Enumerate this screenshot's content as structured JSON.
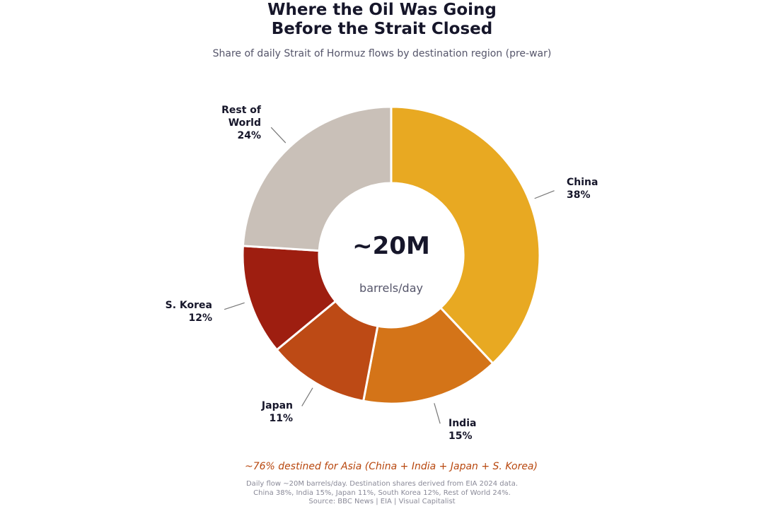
{
  "title_lines": [
    "Where the Oil Was Going",
    "Before the Strait Closed"
  ],
  "subtitle": "Share of daily Strait of Hormuz flows by destination region (pre-war)",
  "chart_data": {
    "type": "pie",
    "variant": "donut",
    "title": "Where the Oil Was Going Before the Strait Closed",
    "subtitle": "Share of daily Strait of Hormuz flows by destination region (pre-war)",
    "categories": [
      "China",
      "India",
      "Japan",
      "S. Korea",
      "Rest of World"
    ],
    "values": [
      38,
      15,
      11,
      12,
      24
    ],
    "value_labels": [
      "38%",
      "15%",
      "11%",
      "12%",
      "24%"
    ],
    "colors": [
      "#e8a922",
      "#d47418",
      "#bd4a15",
      "#9e1e10",
      "#c9c0b8"
    ],
    "start": "12 o'clock",
    "direction": "clockwise",
    "center_value": "~20M",
    "center_unit": "barrels/day",
    "legend": "none"
  },
  "annotation": "~76% destined for Asia  (China + India + Japan + S. Korea)",
  "annotation_color": "#b8470e",
  "footnote_lines": [
    "Daily flow ~20M barrels/day. Destination shares derived from EIA 2024 data.",
    "China 38%, India 15%, Japan 11%, South Korea 12%, Rest of World 24%.",
    "Source: BBC News | EIA | Visual Capitalist"
  ]
}
